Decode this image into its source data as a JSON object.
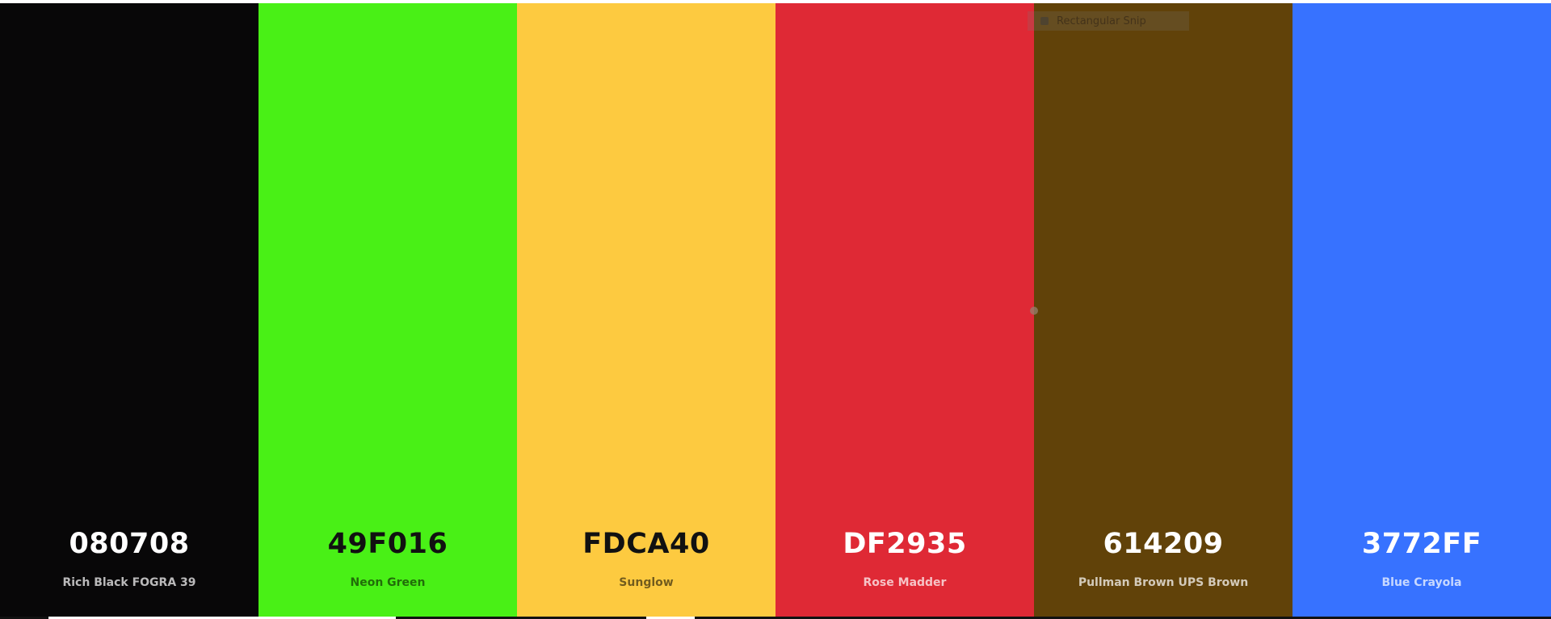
{
  "palette": {
    "colors": [
      {
        "hex": "080708",
        "name": "Rich Black FOGRA 39",
        "bg": "#080708",
        "text_theme": "light"
      },
      {
        "hex": "49F016",
        "name": "Neon Green",
        "bg": "#49F016",
        "text_theme": "dark"
      },
      {
        "hex": "FDCA40",
        "name": "Sunglow",
        "bg": "#FDCA40",
        "text_theme": "dark"
      },
      {
        "hex": "DF2935",
        "name": "Rose Madder",
        "bg": "#DF2935",
        "text_theme": "light"
      },
      {
        "hex": "614209",
        "name": "Pullman Brown UPS Brown",
        "bg": "#614209",
        "text_theme": "light"
      },
      {
        "hex": "3772FF",
        "name": "Blue Crayola",
        "bg": "#3772FF",
        "text_theme": "light"
      }
    ]
  },
  "snip_overlay": {
    "mode_label": "Rectangular Snip",
    "mode_icon": "snip-rectangle-icon",
    "handle_icon": "drag-handle-icon"
  }
}
